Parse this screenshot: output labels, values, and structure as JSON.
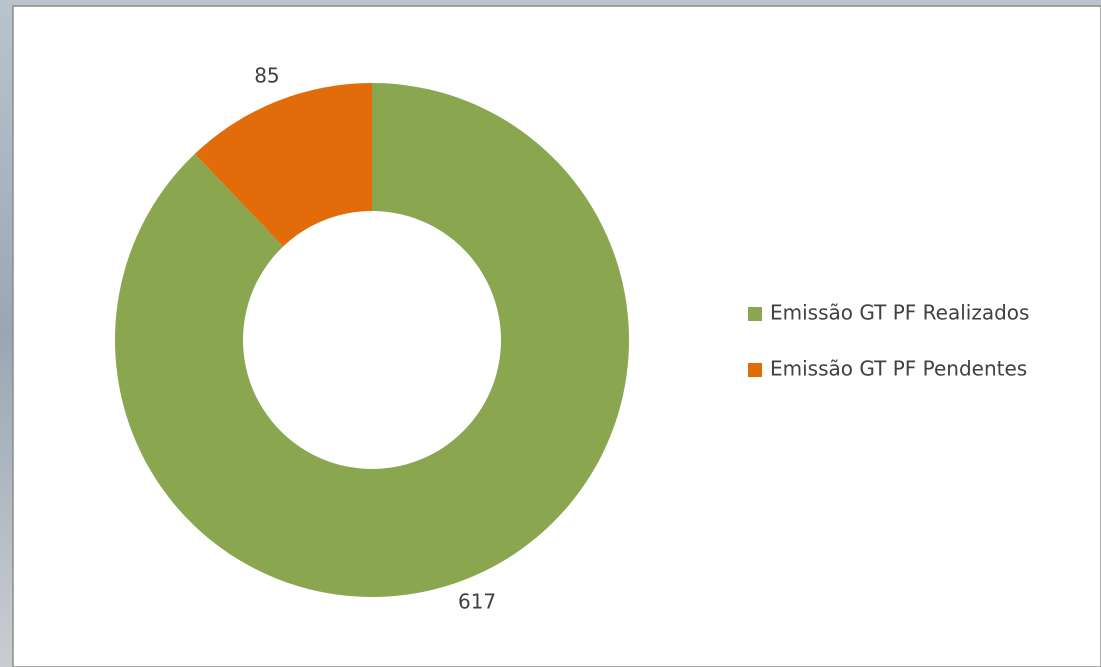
{
  "chart_data": {
    "type": "donut",
    "categories": [
      "Emissão GT PF Realizados",
      "Emissão GT PF Pendentes"
    ],
    "series": [
      {
        "values": [
          617,
          85
        ],
        "colors": [
          "#8aa64f",
          "#e36c0a"
        ]
      }
    ],
    "legend": "right"
  }
}
